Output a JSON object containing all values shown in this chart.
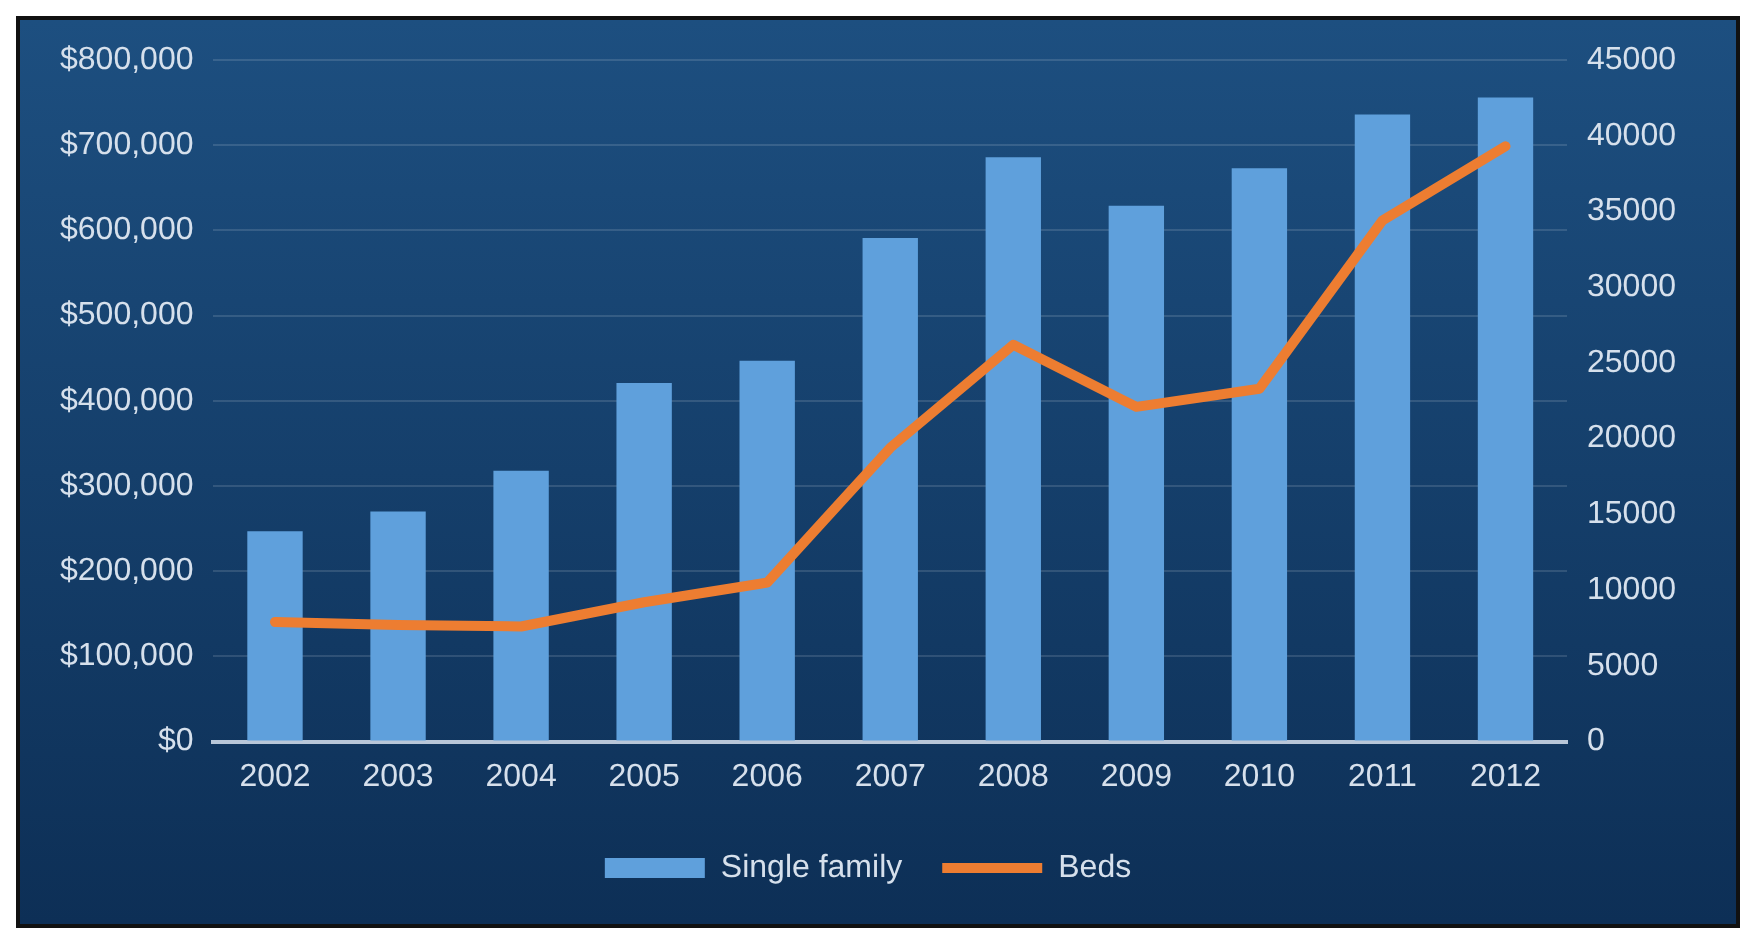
{
  "chart_data": {
    "type": "bar",
    "categories": [
      "2002",
      "2003",
      "2004",
      "2005",
      "2006",
      "2007",
      "2008",
      "2009",
      "2010",
      "2011",
      "2012"
    ],
    "series": [
      {
        "name": "Single family",
        "color": "#5fa0dc",
        "values": [
          247000,
          270000,
          318000,
          421000,
          447000,
          591000,
          686000,
          629000,
          673000,
          736000,
          756000
        ]
      },
      {
        "name": "Beds",
        "type": "line",
        "axis": "y2",
        "color": "#ed7d31",
        "values": [
          7900,
          7700,
          7600,
          9200,
          10500,
          19400,
          26200,
          22100,
          23300,
          34400,
          39300
        ]
      }
    ],
    "ylim": [
      0,
      800000
    ],
    "yticks": [
      {
        "value": 0,
        "label": "$0"
      },
      {
        "value": 100000,
        "label": "$100,000"
      },
      {
        "value": 200000,
        "label": "$200,000"
      },
      {
        "value": 300000,
        "label": "$300,000"
      },
      {
        "value": 400000,
        "label": "$400,000"
      },
      {
        "value": 500000,
        "label": "$500,000"
      },
      {
        "value": 600000,
        "label": "$600,000"
      },
      {
        "value": 700000,
        "label": "$700,000"
      },
      {
        "value": 800000,
        "label": "$800,000"
      }
    ],
    "y2lim": [
      0,
      45000
    ],
    "y2ticks": [
      0,
      5000,
      10000,
      15000,
      20000,
      25000,
      30000,
      35000,
      40000,
      45000
    ],
    "grid": "y",
    "legend": "bottom",
    "marker": "none",
    "line_style": "solid"
  }
}
